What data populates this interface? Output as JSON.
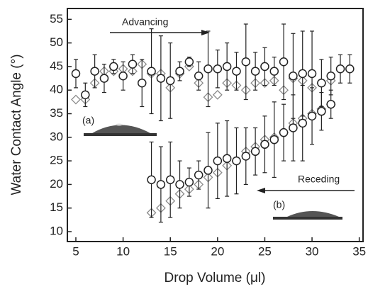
{
  "chart_data": {
    "type": "scatter",
    "xlabel": "Drop Volume (μl)",
    "ylabel": "Water Contact Angle (°)",
    "xlim": [
      4.1,
      35.4
    ],
    "ylim": [
      7.9,
      57.3
    ],
    "xticks": [
      5,
      10,
      15,
      20,
      25,
      30,
      35
    ],
    "yticks": [
      10,
      15,
      20,
      25,
      30,
      35,
      40,
      45,
      50,
      55
    ],
    "annotations": [
      "Advancing",
      "Receding",
      "(a)",
      "(b)"
    ],
    "series": [
      {
        "marker": "circle",
        "color": "#222222",
        "x": [
          5,
          6,
          7,
          8,
          9,
          10,
          11,
          12,
          13,
          14,
          15,
          16,
          17,
          18,
          19,
          20,
          21,
          22,
          23,
          24,
          25,
          26,
          27,
          28,
          29,
          30,
          31,
          32,
          33,
          34
        ],
        "values": [
          43.5,
          39,
          44,
          42.5,
          45,
          43,
          45.5,
          41.5,
          44,
          42.5,
          42,
          44,
          46,
          43,
          44.5,
          44.5,
          45,
          44,
          46,
          44,
          45,
          44,
          46,
          43,
          43.5,
          43.5,
          41.5,
          43,
          44.5,
          44.5
        ],
        "errors": [
          3,
          2.5,
          3.5,
          3,
          1.5,
          3,
          2,
          5,
          9,
          9,
          8,
          2,
          1,
          3,
          8,
          4,
          5,
          4,
          8,
          4,
          4,
          3,
          8,
          9,
          9,
          9,
          5,
          4,
          3,
          3
        ]
      },
      {
        "marker": "circle",
        "color": "#222222",
        "x": [
          13,
          14,
          15,
          16,
          17,
          18,
          19,
          20,
          21,
          22,
          23,
          24,
          25,
          26,
          27,
          28,
          29,
          30,
          31,
          32
        ],
        "values": [
          21,
          20,
          21,
          20,
          20.5,
          22,
          23,
          25,
          25.5,
          25,
          26,
          27,
          28.5,
          29.5,
          31,
          32,
          33,
          34.5,
          35.5,
          37
        ],
        "errors": [
          8,
          8,
          8,
          5,
          3,
          3,
          8,
          8,
          8,
          7,
          6,
          5,
          6,
          8,
          6,
          7,
          8,
          6,
          4,
          3
        ]
      },
      {
        "marker": "diamond",
        "color": "#8a8a8a",
        "x": [
          5,
          6,
          7,
          8,
          9,
          10,
          11,
          12,
          13,
          14,
          15,
          16,
          17,
          18,
          19,
          20,
          21,
          22,
          23,
          24,
          25,
          26,
          27,
          28,
          29,
          30,
          31,
          32
        ],
        "values": [
          38,
          38,
          41.5,
          44,
          44,
          44.5,
          44,
          45.5,
          43.5,
          43.5,
          40.5,
          43.5,
          45,
          41.5,
          38.5,
          39,
          41.5,
          41,
          40,
          41.5,
          41.5,
          42,
          40,
          42.5,
          42,
          40.5,
          41.5,
          42
        ]
      },
      {
        "marker": "diamond",
        "color": "#8a8a8a",
        "x": [
          13,
          14,
          15,
          16,
          17,
          18,
          19,
          20,
          21,
          22,
          23,
          24,
          25,
          26,
          27,
          28,
          29,
          30,
          31,
          32
        ],
        "values": [
          14,
          15,
          16.5,
          18,
          19,
          20,
          21.5,
          22.5,
          24,
          25,
          27,
          28,
          29.5,
          30,
          31,
          33,
          34,
          35,
          36,
          37
        ]
      }
    ]
  }
}
